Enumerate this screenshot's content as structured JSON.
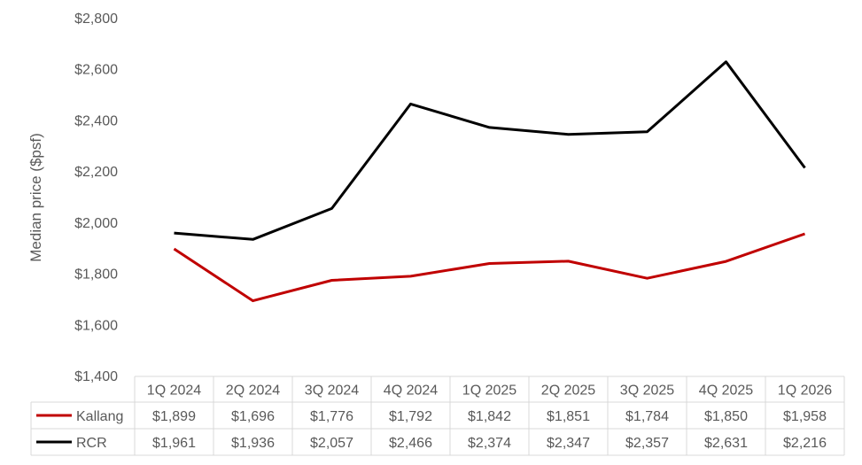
{
  "chart_data": {
    "type": "line",
    "title": "",
    "xlabel": "",
    "ylabel": "Median price ($psf)",
    "ylim": [
      1400,
      2800
    ],
    "y_ticks": [
      1400,
      1600,
      1800,
      2000,
      2200,
      2400,
      2600,
      2800
    ],
    "y_tick_labels": [
      "$1,400",
      "$1,600",
      "$1,800",
      "$2,000",
      "$2,200",
      "$2,400",
      "$2,600",
      "$2,800"
    ],
    "grid": false,
    "legend": "data-table",
    "categories": [
      "1Q 2024",
      "2Q 2024",
      "3Q 2024",
      "4Q 2024",
      "1Q 2025",
      "2Q 2025",
      "3Q 2025",
      "4Q 2025",
      "1Q 2026"
    ],
    "series": [
      {
        "name": "Kallang",
        "color": "#c00000",
        "values": [
          1899,
          1696,
          1776,
          1792,
          1842,
          1851,
          1784,
          1850,
          1958
        ],
        "labels": [
          "$1,899",
          "$1,696",
          "$1,776",
          "$1,792",
          "$1,842",
          "$1,851",
          "$1,784",
          "$1,850",
          "$1,958"
        ]
      },
      {
        "name": "RCR",
        "color": "#000000",
        "values": [
          1961,
          1936,
          2057,
          2466,
          2374,
          2347,
          2357,
          2631,
          2216
        ],
        "labels": [
          "$1,961",
          "$1,936",
          "$2,057",
          "$2,466",
          "$2,374",
          "$2,347",
          "$2,357",
          "$2,631",
          "$2,216"
        ]
      }
    ]
  }
}
